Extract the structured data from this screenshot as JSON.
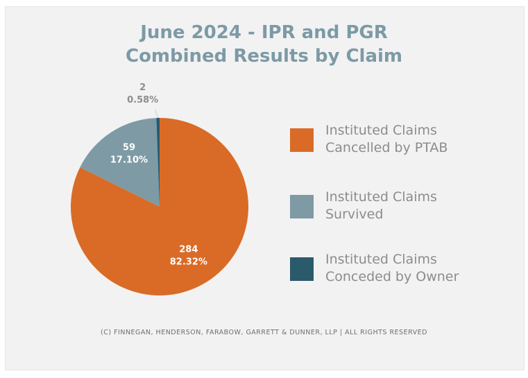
{
  "title": {
    "line1": "June 2024 - IPR and PGR",
    "line2": "Combined Results by Claim"
  },
  "chart_data": {
    "type": "pie",
    "title": "June 2024 - IPR and PGR Combined Results by Claim",
    "slices": [
      {
        "name": "Instituted Claims Cancelled by PTAB",
        "legend_lines": [
          "Instituted Claims",
          "Cancelled by PTAB"
        ],
        "value": 284,
        "percent_label": "82.32%",
        "value_label": "284",
        "color": "#d96b27",
        "label_color": "#ffffff"
      },
      {
        "name": "Instituted Claims Survived",
        "legend_lines": [
          "Instituted Claims",
          "Survived"
        ],
        "value": 59,
        "percent_label": "17.10%",
        "value_label": "59",
        "color": "#7e9aa4",
        "label_color": "#ffffff"
      },
      {
        "name": "Instituted Claims Conceded by Owner",
        "legend_lines": [
          "Instituted Claims",
          "Conceded by Owner"
        ],
        "value": 2,
        "percent_label": "0.58%",
        "value_label": "2",
        "color": "#2b5a6b",
        "label_color": "#8a8c8e"
      }
    ],
    "start_angle_deg": 0,
    "direction": "clockwise",
    "legend_position": "right"
  },
  "footer": "(C) FINNEGAN, HENDERSON, FARABOW, GARRETT & DUNNER, LLP | ALL RIGHTS RESERVED"
}
